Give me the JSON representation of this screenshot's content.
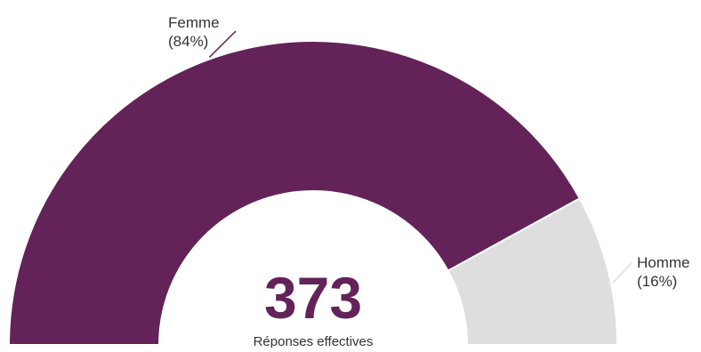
{
  "chart_data": {
    "type": "pie",
    "subtype": "semi-donut",
    "categories": [
      "Femme",
      "Homme"
    ],
    "values": [
      84,
      16
    ],
    "value_labels": [
      "(84%)",
      "(16%)"
    ],
    "colors": [
      "#632358",
      "#dedede"
    ],
    "center_value": "373",
    "center_label": "Réponses effectives",
    "center_value_color": "#632358",
    "label_color": "#333333",
    "leader_colors": [
      "#632358",
      "#dedede"
    ],
    "legend": "none"
  }
}
